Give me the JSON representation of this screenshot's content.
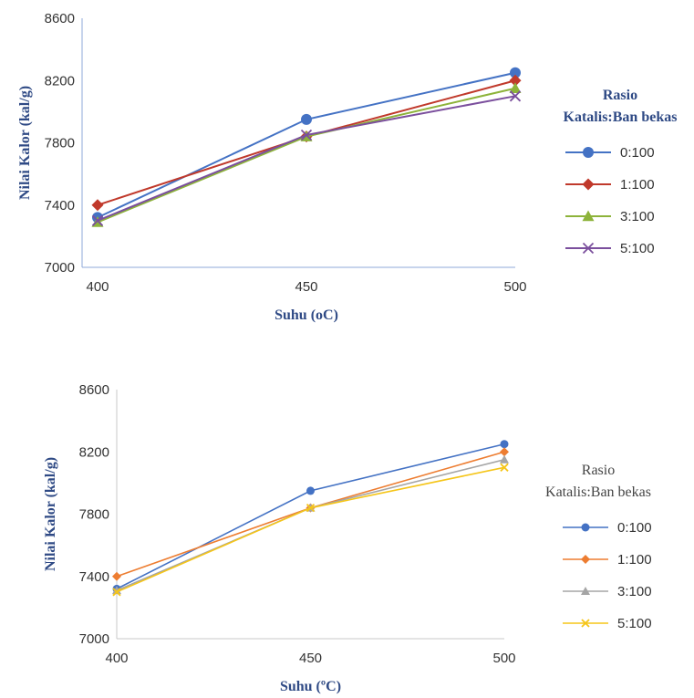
{
  "chart_data": [
    {
      "type": "line",
      "xlabel": "Suhu (oC)",
      "ylabel": "Nilai Kalor (kal/g)",
      "x": [
        400,
        450,
        500
      ],
      "x_ticks": [
        "400",
        "450",
        "500"
      ],
      "y_ticks": [
        "7000",
        "7400",
        "7800",
        "8200",
        "8600"
      ],
      "ylim": [
        7000,
        8600
      ],
      "grid": false,
      "legend_title": [
        "Rasio",
        "Katalis:Ban bekas"
      ],
      "legend_position": "right",
      "series": [
        {
          "name": "0:100",
          "values": [
            7320,
            7950,
            8250
          ],
          "color": "#4472c4",
          "marker": "circle"
        },
        {
          "name": "1:100",
          "values": [
            7400,
            7840,
            8200
          ],
          "color": "#c0392b",
          "marker": "diamond"
        },
        {
          "name": "3:100",
          "values": [
            7290,
            7840,
            8150
          ],
          "color": "#8db33a",
          "marker": "triangle"
        },
        {
          "name": "5:100",
          "values": [
            7300,
            7850,
            8100
          ],
          "color": "#7b4f9d",
          "marker": "x"
        }
      ]
    },
    {
      "type": "line",
      "xlabel": "Suhu (ºC)",
      "ylabel": "Nilai Kalor (kal/g)",
      "x": [
        400,
        450,
        500
      ],
      "x_ticks": [
        "400",
        "450",
        "500"
      ],
      "y_ticks": [
        "7000",
        "7400",
        "7800",
        "8200",
        "8600"
      ],
      "ylim": [
        7000,
        8600
      ],
      "grid": false,
      "legend_title": [
        "Rasio",
        "Katalis:Ban bekas"
      ],
      "legend_position": "right",
      "series": [
        {
          "name": "0:100",
          "values": [
            7320,
            7950,
            8250
          ],
          "color": "#4472c4",
          "marker": "circle"
        },
        {
          "name": "1:100",
          "values": [
            7400,
            7840,
            8200
          ],
          "color": "#ed7d31",
          "marker": "diamond"
        },
        {
          "name": "3:100",
          "values": [
            7310,
            7840,
            8150
          ],
          "color": "#a5a5a5",
          "marker": "triangle"
        },
        {
          "name": "5:100",
          "values": [
            7300,
            7840,
            8100
          ],
          "color": "#f5c518",
          "marker": "x"
        }
      ]
    }
  ]
}
